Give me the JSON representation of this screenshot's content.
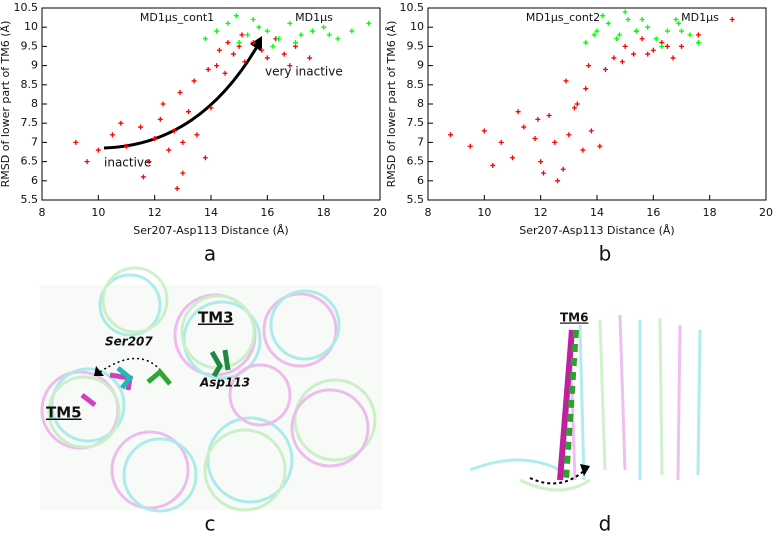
{
  "chart_data": [
    {
      "type": "scatter",
      "xlabel": "Ser207-Asp113 Distance (Å)",
      "ylabel": "RMSD of lower part of TM6 (Å)",
      "xlim": [
        8,
        20
      ],
      "ylim": [
        5.5,
        10.5
      ],
      "xticks": [
        8,
        10,
        12,
        14,
        16,
        18,
        20
      ],
      "yticks": [
        5.5,
        6,
        6.5,
        7,
        7.5,
        8,
        8.5,
        9,
        9.5,
        10,
        10.5
      ],
      "annotations": [
        "inactive",
        "very inactive"
      ],
      "series": [
        {
          "name": "MD1μs_cont1",
          "color": "#ff0000",
          "x": [
            9.2,
            10,
            10.5,
            11,
            11.5,
            11.8,
            12,
            12.2,
            12.5,
            12.7,
            13,
            13,
            13.2,
            13.5,
            13.8,
            14,
            12.3,
            11.6,
            12.9,
            13.4,
            14.2,
            14.5,
            14.8,
            15,
            15.2,
            15.5,
            15.8,
            16,
            16.3,
            16.6,
            17,
            17.5,
            14.6,
            15.1,
            13.9,
            14.3,
            12.8,
            10.8,
            9.6,
            16.8
          ],
          "values": [
            7.0,
            6.8,
            7.2,
            6.9,
            7.4,
            6.5,
            7.1,
            7.6,
            6.8,
            7.3,
            7.0,
            6.2,
            7.8,
            7.2,
            6.6,
            7.9,
            8.0,
            6.1,
            8.3,
            8.6,
            9.0,
            8.8,
            9.3,
            9.5,
            9.1,
            9.6,
            9.4,
            9.2,
            9.7,
            9.3,
            9.5,
            9.2,
            9.6,
            9.8,
            8.9,
            9.4,
            5.8,
            7.5,
            6.5,
            9.0
          ]
        },
        {
          "name": "MD1μs",
          "color": "#00ff00",
          "x": [
            13.8,
            14.2,
            14.6,
            15,
            15.3,
            15.7,
            16,
            16.4,
            16.8,
            17.2,
            17.6,
            18,
            18.5,
            19,
            19.6,
            15.5,
            16.2,
            17,
            14.9,
            18.2
          ],
          "values": [
            9.7,
            9.9,
            10.1,
            9.6,
            9.8,
            10.0,
            9.9,
            9.7,
            10.1,
            9.8,
            9.9,
            10.0,
            9.7,
            9.9,
            10.1,
            10.2,
            9.5,
            9.6,
            10.3,
            9.8
          ]
        }
      ]
    },
    {
      "type": "scatter",
      "xlabel": "Ser207-Asp113 Distance (Å)",
      "ylabel": "RMSD of lower part of TM6 (Å)",
      "xlim": [
        8,
        20
      ],
      "ylim": [
        5.5,
        10.5
      ],
      "xticks": [
        8,
        10,
        12,
        14,
        16,
        18,
        20
      ],
      "yticks": [
        5.5,
        6,
        6.5,
        7,
        7.5,
        8,
        8.5,
        9,
        9.5,
        10,
        10.5
      ],
      "series": [
        {
          "name": "MD1μs_cont2",
          "color": "#ff0000",
          "x": [
            8.8,
            9.5,
            10,
            10.6,
            11,
            11.4,
            11.8,
            12,
            12.3,
            12.5,
            12.8,
            13,
            13.2,
            13.5,
            13.8,
            14.1,
            12.6,
            11.9,
            13.3,
            12.1,
            13.6,
            14.3,
            14.6,
            15,
            15.3,
            15.6,
            16,
            16.3,
            16.7,
            17,
            17.6,
            18.8,
            14.9,
            15.4,
            13.7,
            12.9,
            10.3,
            11.2,
            16.5,
            15.8
          ],
          "values": [
            7.2,
            6.9,
            7.3,
            7.0,
            6.6,
            7.4,
            7.1,
            6.5,
            7.7,
            7.0,
            6.3,
            7.2,
            7.9,
            6.8,
            7.3,
            6.9,
            6.0,
            7.6,
            8.0,
            6.2,
            8.4,
            8.9,
            9.2,
            9.5,
            9.3,
            9.7,
            9.4,
            9.6,
            9.2,
            9.5,
            9.8,
            10.2,
            9.1,
            9.9,
            9.0,
            8.6,
            6.4,
            7.8,
            9.5,
            9.3
          ]
        },
        {
          "name": "MD1μs",
          "color": "#00ff00",
          "x": [
            13.6,
            14,
            14.4,
            14.8,
            15.1,
            15.4,
            15.8,
            16.1,
            16.5,
            16.9,
            17.3,
            17.6,
            14.2,
            15,
            16.3,
            15.6,
            14.7,
            17,
            13.9,
            16.8
          ],
          "values": [
            9.6,
            9.9,
            10.1,
            9.8,
            10.2,
            9.9,
            10.0,
            9.7,
            9.9,
            10.1,
            9.8,
            9.6,
            10.3,
            10.4,
            9.5,
            10.2,
            9.7,
            9.9,
            9.8,
            10.2
          ]
        }
      ]
    }
  ],
  "panels": {
    "labels": [
      "a",
      "b",
      "c",
      "d"
    ],
    "c_labels": [
      "TM3",
      "Ser207",
      "TM5",
      "Asp113"
    ],
    "d_labels": [
      "TM6"
    ]
  }
}
